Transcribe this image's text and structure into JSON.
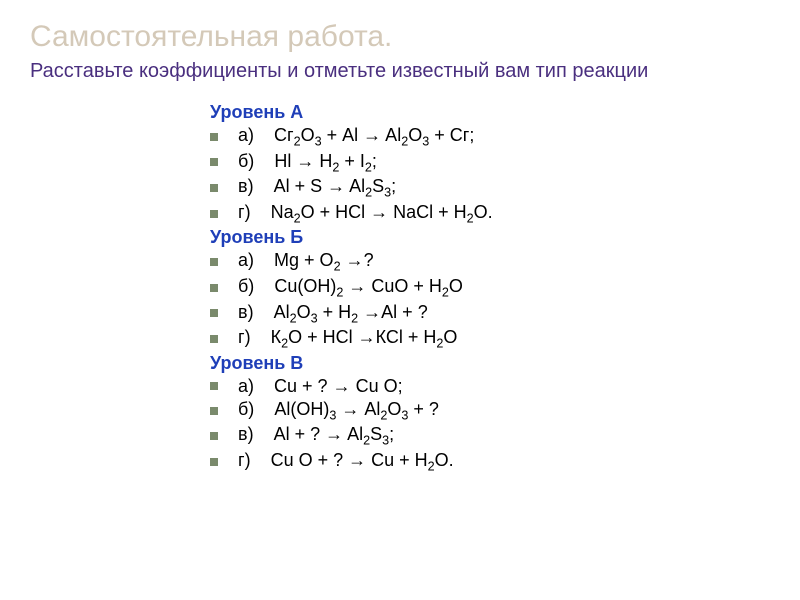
{
  "title": "Самостоятельная  работа.",
  "subtitle": "Расставьте коэффициенты и отметьте известный вам тип реакции",
  "colors": {
    "title": "#d4c9b8",
    "subtitle": "#4a2f7f",
    "level_header": "#1f3fb8",
    "equation_text": "#000000",
    "bullet": "#7a8a6c",
    "background": "#ffffff"
  },
  "fonts": {
    "title_size": 30,
    "subtitle_size": 20,
    "level_header_size": 18,
    "equation_size": 18
  },
  "levels": [
    {
      "name": "Уровень А",
      "equations": [
        {
          "label": "а)",
          "formula": "Сг<sub>2</sub>О<sub>3</sub> + Аl → Al<sub>2</sub>O<sub>3</sub> + Сг;"
        },
        {
          "label": "б)",
          "formula": "Нl → H<sub>2</sub> + I<sub>2</sub>;"
        },
        {
          "label": "в)",
          "formula": "Al + S → Al<sub>2</sub>S<sub>3</sub>;"
        },
        {
          "label": "г)",
          "formula": "Na<sub>2</sub>O + HCl → NaCl + H<sub>2</sub>O."
        }
      ]
    },
    {
      "name": "Уровень Б",
      "equations": [
        {
          "label": "а)",
          "formula": "Mg + O<sub>2</sub> →?"
        },
        {
          "label": "б)",
          "formula": "Сu(OH)<sub>2</sub> → CuO + H<sub>2</sub>O"
        },
        {
          "label": "в)",
          "formula": "Al<sub>2</sub>O<sub>3</sub> + H<sub>2</sub> →Al + ?"
        },
        {
          "label": "г)",
          "formula": "К<sub>2</sub>О + НСl →КСl + Н<sub>2</sub>О"
        }
      ]
    },
    {
      "name": "Уровень В",
      "equations": [
        {
          "label": "а)",
          "formula": "Сu + ? → Сu О;"
        },
        {
          "label": "б)",
          "formula": "Аl(ОН)<sub>3</sub> → Аl<sub>2</sub>О<sub>3</sub> + ?"
        },
        {
          "label": "в)",
          "formula": "Аl + ? → Al<sub>2</sub>S<sub>3</sub>;"
        },
        {
          "label": "г)",
          "formula": "Cu O + ? → Cu + H<sub>2</sub>O."
        }
      ]
    }
  ]
}
